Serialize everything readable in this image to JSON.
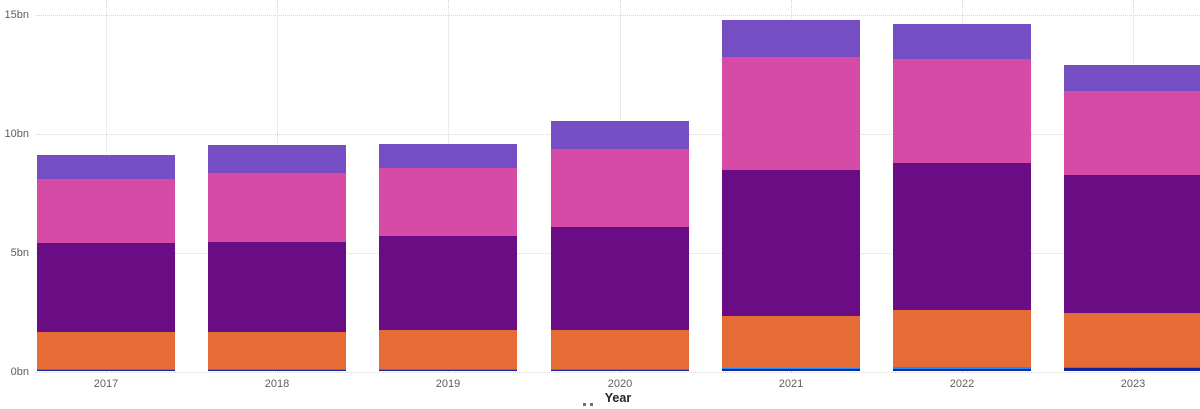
{
  "chart_data": {
    "type": "bar",
    "subtype": "stacked-column",
    "title": "",
    "xlabel": "Year",
    "ylabel": "",
    "categories": [
      "2017",
      "2018",
      "2019",
      "2020",
      "2021",
      "2022",
      "2023"
    ],
    "y_ticks": [
      {
        "label": "0bn",
        "value": 0
      },
      {
        "label": "5bn",
        "value": 5
      },
      {
        "label": "10bn",
        "value": 10
      },
      {
        "label": "15bn",
        "value": 15
      }
    ],
    "ylim": [
      0,
      15.6
    ],
    "unit": "bn",
    "grid": {
      "horizontal": true,
      "vertical": true,
      "style": "dotted",
      "color": "#d9d7d5"
    },
    "legend": {
      "visible": false
    },
    "series": [
      {
        "name": "navy-segment",
        "color": "#12239e",
        "values": [
          0.08,
          0.08,
          0.08,
          0.08,
          0.1,
          0.12,
          0.15
        ]
      },
      {
        "name": "light-blue-segment",
        "color": "#118dff",
        "values": [
          0.03,
          0.03,
          0.03,
          0.03,
          0.04,
          0.05,
          0.05
        ]
      },
      {
        "name": "orange-segment",
        "color": "#e66c37",
        "values": [
          1.55,
          1.55,
          1.62,
          1.65,
          2.2,
          2.42,
          2.28
        ]
      },
      {
        "name": "dark-purple-segment",
        "color": "#6a0d84",
        "values": [
          3.74,
          3.78,
          3.97,
          4.31,
          6.15,
          6.19,
          5.8
        ]
      },
      {
        "name": "magenta-segment",
        "color": "#d64ba6",
        "values": [
          2.7,
          2.9,
          2.84,
          3.28,
          4.73,
          4.35,
          3.53
        ]
      },
      {
        "name": "violet-segment",
        "color": "#744ec2",
        "values": [
          1.01,
          1.19,
          1.02,
          1.19,
          1.58,
          1.49,
          1.07
        ]
      }
    ],
    "totals_approx": [
      9.11,
      9.53,
      9.56,
      10.54,
      14.8,
      14.62,
      12.88
    ]
  },
  "colors": {
    "background": "#ffffff",
    "tick_label": "#605e5c",
    "axis_title": "#252423",
    "gridline": "#d9d7d5"
  }
}
